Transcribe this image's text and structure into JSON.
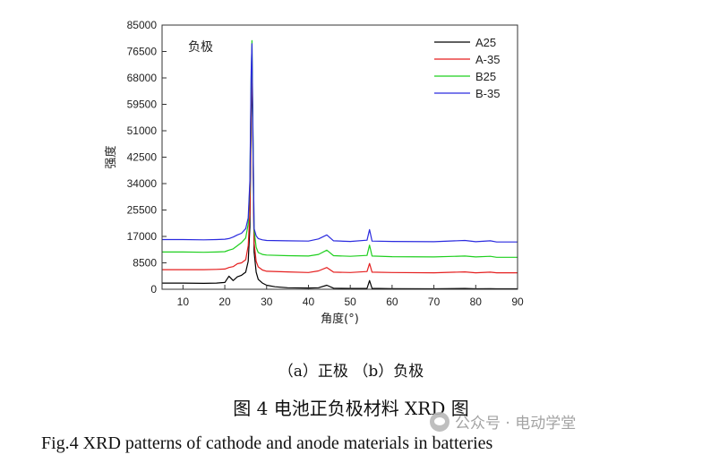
{
  "chart_data": {
    "type": "line",
    "title": "",
    "annotation": "负极",
    "xlabel": "角度(°)",
    "ylabel": "强度",
    "xlim": [
      5,
      90
    ],
    "ylim": [
      0,
      85000
    ],
    "x_ticks": [
      10,
      20,
      30,
      40,
      50,
      60,
      70,
      80,
      90
    ],
    "y_ticks": [
      0,
      8500,
      17000,
      25500,
      34000,
      42500,
      51000,
      59500,
      68000,
      76500,
      85000
    ],
    "legend_position": "top-right",
    "series": [
      {
        "name": "A25",
        "color": "#000000",
        "x": [
          5,
          10,
          15,
          18,
          20,
          21,
          22,
          23,
          24,
          25,
          25.6,
          26,
          26.3,
          26.5,
          26.7,
          27,
          27.5,
          28,
          29,
          30,
          32,
          35,
          40,
          42.4,
          44.4,
          46,
          50,
          54,
          54.6,
          55.2,
          60,
          70,
          77.4,
          80,
          83.5,
          85,
          90
        ],
        "y": [
          2000,
          2000,
          1900,
          2000,
          2200,
          4200,
          2800,
          4000,
          4500,
          5500,
          9000,
          20000,
          55000,
          72000,
          48000,
          12000,
          5500,
          3200,
          2000,
          1300,
          800,
          500,
          400,
          500,
          1300,
          350,
          250,
          300,
          2800,
          300,
          200,
          150,
          250,
          150,
          200,
          150,
          150
        ]
      },
      {
        "name": "A-35",
        "color": "#e51f1f",
        "x": [
          5,
          10,
          15,
          18,
          20,
          21,
          22,
          23,
          24,
          25,
          25.6,
          26,
          26.3,
          26.5,
          26.7,
          27,
          27.5,
          28,
          29,
          30,
          35,
          40,
          42.4,
          44.4,
          46,
          50,
          54,
          54.6,
          55.2,
          60,
          70,
          77.4,
          80,
          83.5,
          85,
          90
        ],
        "y": [
          6300,
          6300,
          6300,
          6400,
          6500,
          7000,
          7300,
          8200,
          8500,
          9500,
          14000,
          25000,
          60000,
          75000,
          50000,
          15000,
          9000,
          7200,
          6200,
          5800,
          5600,
          5400,
          5900,
          7000,
          5500,
          5400,
          5700,
          8300,
          5500,
          5400,
          5300,
          5600,
          5300,
          5500,
          5300,
          5300
        ]
      },
      {
        "name": "B25",
        "color": "#1fcf1f",
        "x": [
          5,
          10,
          15,
          18,
          20,
          21,
          22,
          23,
          24,
          25,
          25.6,
          26,
          26.3,
          26.5,
          26.7,
          27,
          27.5,
          28,
          29,
          30,
          35,
          40,
          42.4,
          44.4,
          46,
          50,
          54,
          54.6,
          55.2,
          60,
          70,
          77.4,
          80,
          83.5,
          85,
          90
        ],
        "y": [
          12000,
          12000,
          11900,
          12000,
          12100,
          12600,
          13000,
          14000,
          15000,
          16500,
          21000,
          34000,
          68000,
          80000,
          54000,
          19000,
          13500,
          11800,
          11200,
          11000,
          10800,
          10700,
          11200,
          12600,
          10800,
          10600,
          10900,
          14200,
          10700,
          10500,
          10400,
          10700,
          10400,
          10600,
          10300,
          10300
        ]
      },
      {
        "name": "B-35",
        "color": "#2a2adf",
        "x": [
          5,
          10,
          15,
          18,
          20,
          21,
          22,
          23,
          24,
          25,
          25.6,
          26,
          26.3,
          26.5,
          26.7,
          27,
          27.5,
          28,
          29,
          30,
          35,
          40,
          42.4,
          44.4,
          46,
          50,
          54,
          54.6,
          55.2,
          60,
          70,
          77.4,
          80,
          83.5,
          85,
          90
        ],
        "y": [
          16000,
          16000,
          15900,
          16000,
          16100,
          16300,
          16800,
          17500,
          18000,
          19500,
          23000,
          35000,
          70000,
          79000,
          52000,
          19500,
          17200,
          16300,
          15900,
          15700,
          15600,
          15500,
          16200,
          17500,
          15600,
          15400,
          15800,
          19200,
          15500,
          15400,
          15300,
          15700,
          15300,
          15600,
          15200,
          15200
        ]
      }
    ]
  },
  "captions": {
    "sub": "（a）正极  （b）负极",
    "figure_cn": "图 4  电池正负极材料 XRD 图",
    "figure_en": "Fig.4 XRD patterns of cathode and anode materials in batteries"
  },
  "watermark": {
    "text": "公众号 · 电动学堂",
    "icon": "wechat-icon"
  }
}
